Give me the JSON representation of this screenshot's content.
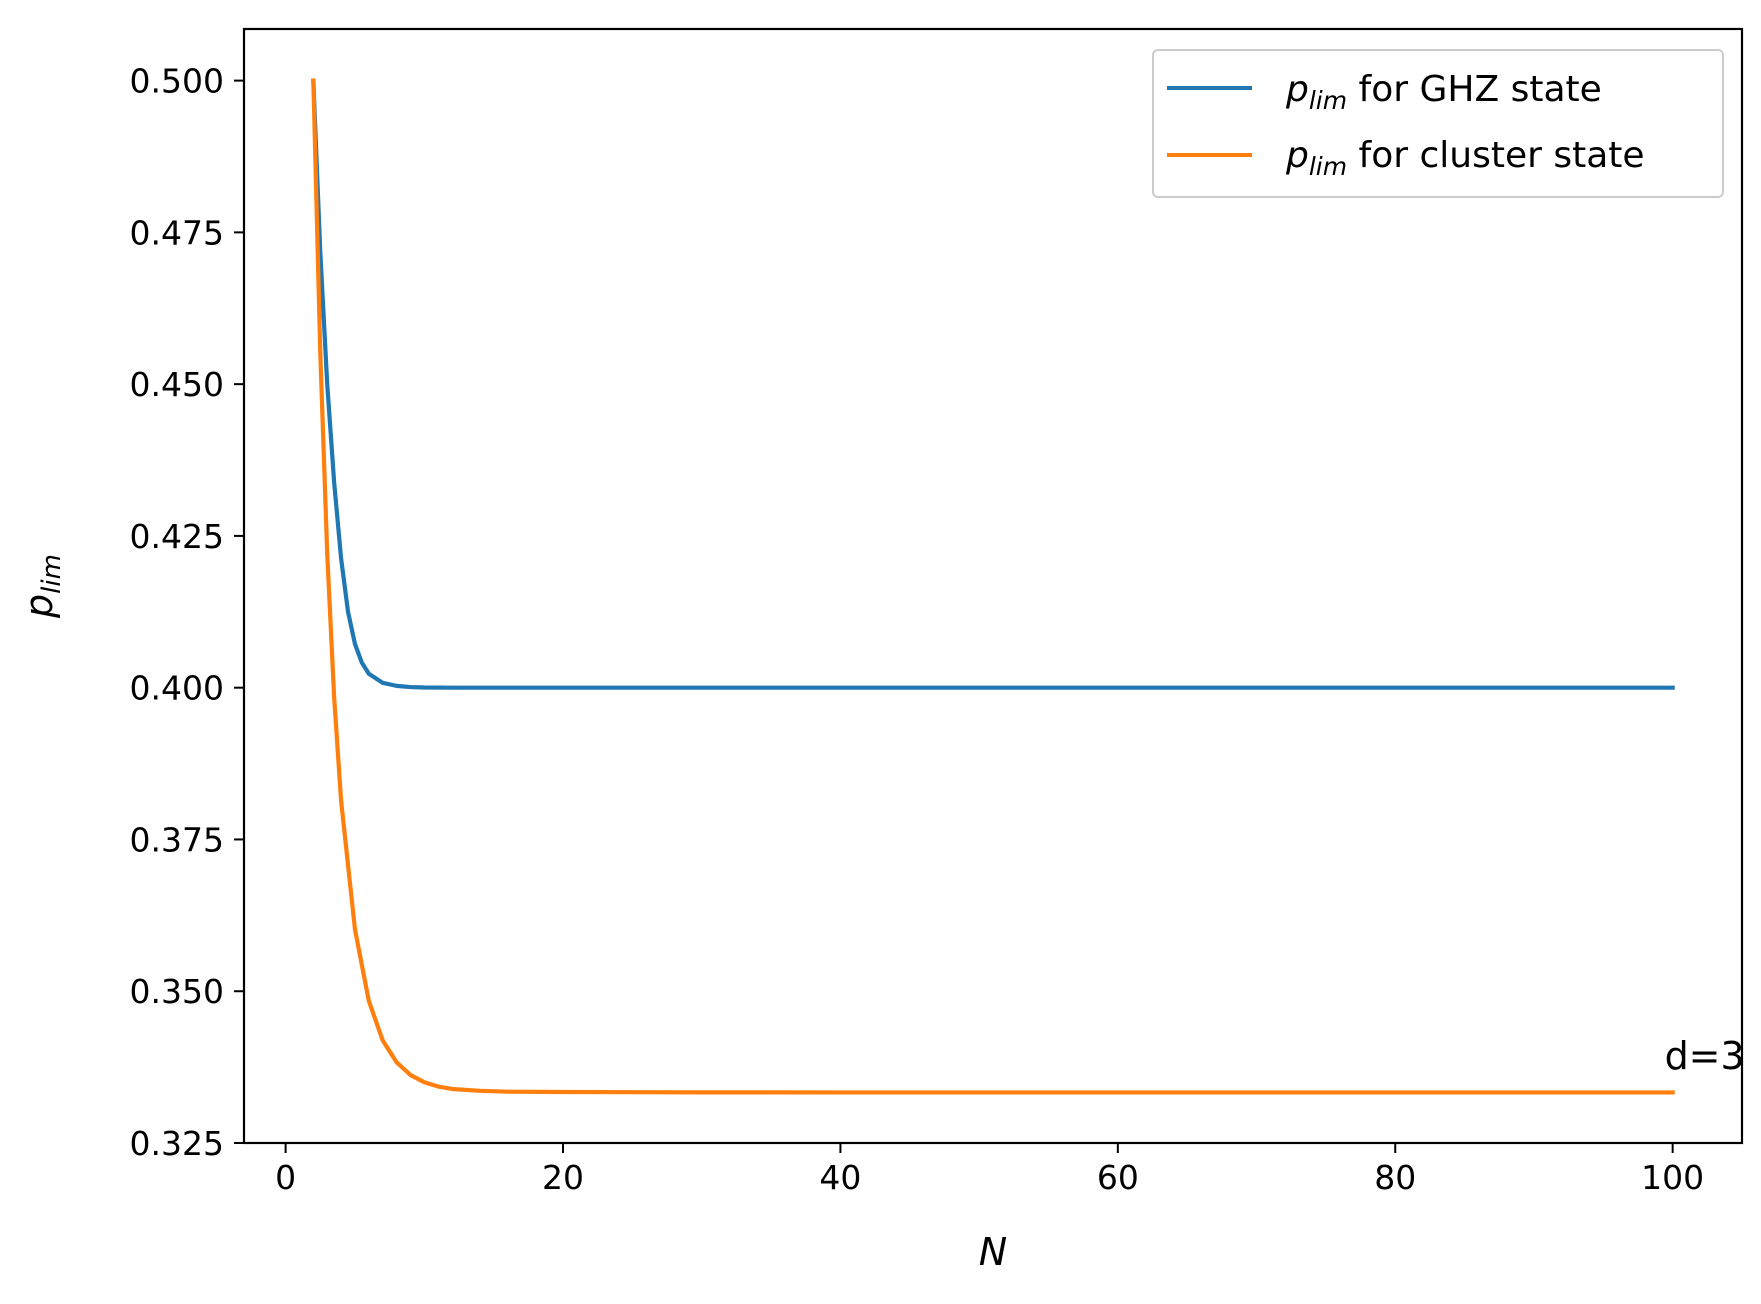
{
  "chart_data": {
    "type": "line",
    "xlabel": "N",
    "ylabel": {
      "main": "p",
      "sub": "lim"
    },
    "xlim": [
      -3,
      105
    ],
    "ylim": [
      0.325,
      0.5085
    ],
    "xticks": [
      0,
      20,
      40,
      60,
      80,
      100
    ],
    "xtick_labels": [
      "0",
      "20",
      "40",
      "60",
      "80",
      "100"
    ],
    "yticks": [
      0.325,
      0.35,
      0.375,
      0.4,
      0.425,
      0.45,
      0.475,
      0.5
    ],
    "ytick_labels": [
      "0.325",
      "0.350",
      "0.375",
      "0.400",
      "0.425",
      "0.450",
      "0.475",
      "0.500"
    ],
    "grid": false,
    "legend_position": "top-right",
    "series": [
      {
        "legend_math": "p",
        "legend_sub": "lim",
        "legend_text": " for GHZ state",
        "color": "#1f77b4",
        "x": [
          2,
          2.5,
          3,
          3.5,
          4,
          4.5,
          5,
          5.5,
          6,
          7,
          8,
          9,
          10,
          12,
          15,
          20,
          30,
          40,
          50,
          60,
          70,
          80,
          90,
          100
        ],
        "y": [
          0.5,
          0.4717,
          0.45,
          0.4338,
          0.4213,
          0.4125,
          0.4072,
          0.4041,
          0.4023,
          0.4008,
          0.4003,
          0.4001,
          0.40003,
          0.4,
          0.4,
          0.4,
          0.4,
          0.4,
          0.4,
          0.4,
          0.4,
          0.4,
          0.4,
          0.4
        ]
      },
      {
        "legend_math": "p",
        "legend_sub": "lim",
        "legend_text": " for cluster state",
        "color": "#ff7f0e",
        "x": [
          2,
          2.5,
          3,
          3.5,
          4,
          5,
          6,
          7,
          8,
          9,
          10,
          11,
          12,
          14,
          16,
          20,
          30,
          40,
          50,
          60,
          70,
          80,
          90,
          100
        ],
        "y": [
          0.5,
          0.4551,
          0.4221,
          0.3984,
          0.3814,
          0.3602,
          0.3484,
          0.3419,
          0.3383,
          0.3362,
          0.335,
          0.3343,
          0.3339,
          0.3336,
          0.33345,
          0.3334,
          0.33334,
          0.33333,
          0.33333,
          0.33333,
          0.33333,
          0.33333,
          0.33333,
          0.33333
        ]
      }
    ],
    "annotations": [
      {
        "text": "d=3",
        "x": 100,
        "y": 0.3395
      }
    ]
  }
}
